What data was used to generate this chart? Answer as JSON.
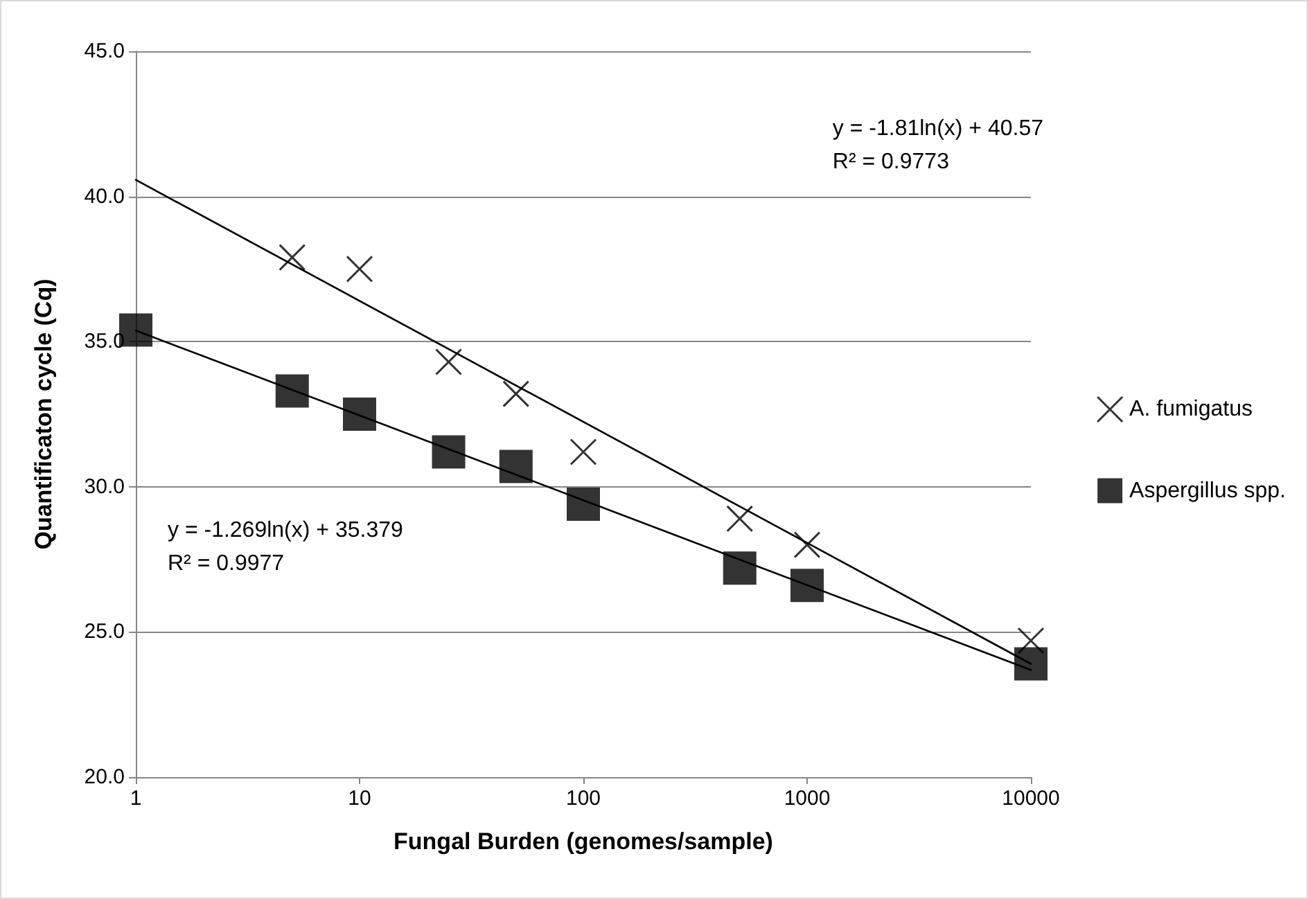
{
  "chart_data": {
    "type": "scatter",
    "xlabel": "Fungal Burden (genomes/sample)",
    "ylabel": "Quantificaton cycle (Cq)",
    "log": "x",
    "xlim": [
      1,
      10000
    ],
    "xticks": [
      1,
      10,
      100,
      1000,
      10000
    ],
    "ylim": [
      20,
      45
    ],
    "yticks": [
      {
        "value": 20,
        "label": "20.0"
      },
      {
        "value": 25,
        "label": "25.0"
      },
      {
        "value": 30,
        "label": "30.0"
      },
      {
        "value": 35,
        "label": "35.0"
      },
      {
        "value": 40,
        "label": "40.0"
      },
      {
        "value": 45,
        "label": "45.0"
      }
    ],
    "grid": "y",
    "legend": "right",
    "series": [
      {
        "name": "A. fumigatus",
        "color": "#000000",
        "marker": "cross",
        "x": [
          5,
          10,
          25,
          50,
          100,
          500,
          1000,
          10000
        ],
        "values": [
          37.9,
          37.5,
          34.3,
          33.2,
          31.2,
          28.9,
          28.0,
          24.7
        ]
      },
      {
        "name": "Aspergillus spp.",
        "color": "#000000",
        "marker": "square",
        "x": [
          1,
          5,
          10,
          25,
          50,
          100,
          500,
          1000,
          10000
        ],
        "values": [
          35.4,
          33.3,
          32.5,
          31.2,
          30.7,
          29.4,
          27.2,
          26.6,
          23.9
        ]
      },
      {
        "type": "line",
        "color": "#000000",
        "marker": "none",
        "x": [
          1,
          10000
        ],
        "values": [
          40.57,
          23.9
        ]
      },
      {
        "type": "line",
        "color": "#000000",
        "marker": "none",
        "x": [
          1,
          10000
        ],
        "values": [
          35.38,
          23.69
        ]
      }
    ],
    "annotations": [
      "y = -1.81ln(x) + 40.57\nR² = 0.9773",
      "y = -1.269ln(x) + 35.379\nR² = 0.9977"
    ]
  }
}
